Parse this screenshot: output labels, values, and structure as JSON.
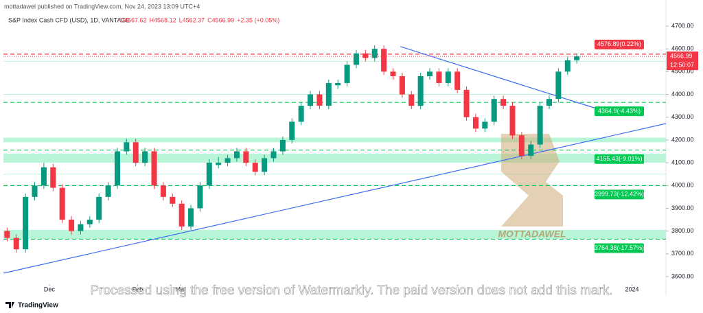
{
  "header": {
    "publisher": "mottadawel published on TradingView.com, Nov 24, 2023 13:09 UTC+4",
    "symbol": "S&P Index Cash CFD (USD), 1D, VANTAGE",
    "ohlc": [
      "O4567.62",
      "H4568.12",
      "L4562.37",
      "C4566.99",
      "+2.35 (+0.05%)"
    ]
  },
  "chart_data": {
    "type": "candlestick",
    "up_color": "#089981",
    "down_color": "#f23645",
    "candles": [
      [
        3800,
        3815,
        3755,
        3770
      ],
      [
        3770,
        3785,
        3705,
        3720
      ],
      [
        3720,
        3965,
        3705,
        3950
      ],
      [
        3950,
        4015,
        3935,
        4000
      ],
      [
        4000,
        4100,
        3985,
        4080
      ],
      [
        4080,
        4095,
        3975,
        3990
      ],
      [
        3990,
        4005,
        3835,
        3850
      ],
      [
        3850,
        3865,
        3785,
        3800
      ],
      [
        3800,
        3845,
        3785,
        3830
      ],
      [
        3830,
        3865,
        3815,
        3850
      ],
      [
        3850,
        3965,
        3835,
        3950
      ],
      [
        3950,
        4015,
        3935,
        4000
      ],
      [
        4000,
        4165,
        3985,
        4150
      ],
      [
        4150,
        4205,
        4135,
        4190
      ],
      [
        4190,
        4205,
        4085,
        4100
      ],
      [
        4100,
        4165,
        4085,
        4150
      ],
      [
        4150,
        4165,
        3985,
        4000
      ],
      [
        4000,
        4015,
        3935,
        3950
      ],
      [
        3950,
        3965,
        3905,
        3920
      ],
      [
        3920,
        3935,
        3805,
        3820
      ],
      [
        3820,
        3915,
        3805,
        3900
      ],
      [
        3900,
        4015,
        3885,
        4000
      ],
      [
        4000,
        4115,
        3985,
        4100
      ],
      [
        4090,
        4125,
        4075,
        4100
      ],
      [
        4100,
        4135,
        4085,
        4120
      ],
      [
        4120,
        4165,
        4105,
        4150
      ],
      [
        4150,
        4165,
        4085,
        4100
      ],
      [
        4100,
        4115,
        4045,
        4060
      ],
      [
        4060,
        4135,
        4045,
        4120
      ],
      [
        4120,
        4165,
        4105,
        4150
      ],
      [
        4150,
        4215,
        4135,
        4200
      ],
      [
        4200,
        4295,
        4185,
        4280
      ],
      [
        4280,
        4365,
        4265,
        4350
      ],
      [
        4350,
        4415,
        4335,
        4400
      ],
      [
        4400,
        4415,
        4335,
        4350
      ],
      [
        4350,
        4465,
        4335,
        4450
      ],
      [
        4440,
        4465,
        4425,
        4450
      ],
      [
        4450,
        4545,
        4435,
        4530
      ],
      [
        4530,
        4595,
        4515,
        4580
      ],
      [
        4580,
        4595,
        4545,
        4560
      ],
      [
        4560,
        4615,
        4545,
        4600
      ],
      [
        4600,
        4615,
        4485,
        4500
      ],
      [
        4500,
        4515,
        4465,
        4480
      ],
      [
        4480,
        4495,
        4385,
        4400
      ],
      [
        4400,
        4415,
        4335,
        4350
      ],
      [
        4350,
        4495,
        4335,
        4480
      ],
      [
        4480,
        4515,
        4465,
        4500
      ],
      [
        4500,
        4515,
        4435,
        4450
      ],
      [
        4450,
        4515,
        4435,
        4500
      ],
      [
        4500,
        4515,
        4405,
        4420
      ],
      [
        4420,
        4435,
        4285,
        4300
      ],
      [
        4300,
        4315,
        4235,
        4250
      ],
      [
        4250,
        4295,
        4235,
        4280
      ],
      [
        4280,
        4395,
        4265,
        4380
      ],
      [
        4380,
        4395,
        4335,
        4350
      ],
      [
        4350,
        4365,
        4205,
        4220
      ],
      [
        4220,
        4235,
        4115,
        4130
      ],
      [
        4130,
        4195,
        4115,
        4180
      ],
      [
        4180,
        4365,
        4165,
        4350
      ],
      [
        4350,
        4395,
        4335,
        4380
      ],
      [
        4380,
        4515,
        4365,
        4500
      ],
      [
        4500,
        4565,
        4485,
        4550
      ],
      [
        4550,
        4580,
        4535,
        4567
      ]
    ],
    "xlim": [
      -0.4,
      71.7
    ],
    "xticks": [
      {
        "value": 4.6,
        "label": "Dec"
      },
      {
        "value": 14.2,
        "label": "Feb"
      },
      {
        "value": 18.9,
        "label": "Mar"
      },
      {
        "value": 68.0,
        "label": "2024"
      }
    ],
    "ylim": [
      3570,
      4735
    ],
    "yticks": [
      {
        "value": 3600,
        "label": "3600.00"
      },
      {
        "value": 3700,
        "label": "3700.00"
      },
      {
        "value": 3800,
        "label": "3800.00"
      },
      {
        "value": 3900,
        "label": "3900.00"
      },
      {
        "value": 4000,
        "label": "4000.00"
      },
      {
        "value": 4100,
        "label": "4100.00"
      },
      {
        "value": 4200,
        "label": "4200.00"
      },
      {
        "value": 4300,
        "label": "4300.00"
      },
      {
        "value": 4400,
        "label": "4400.00"
      },
      {
        "value": 4500,
        "label": "4500.00"
      },
      {
        "value": 4600,
        "label": "4600.00"
      },
      {
        "value": 4700,
        "label": "4700.00"
      }
    ],
    "zones": [
      [
        4190,
        4210
      ],
      [
        4100,
        4140
      ],
      [
        3765,
        3805
      ]
    ],
    "zone_color": "#b9f6d8",
    "guide_lines": [
      4545,
      4400,
      4050
    ],
    "levels": [
      {
        "value": 4576.89,
        "label": "4576.89(0.22%)",
        "color": "#f23645"
      },
      {
        "value": 4364.9,
        "label": "4364.9(-4.43%)",
        "color": "#00c853"
      },
      {
        "value": 4155.43,
        "label": "4155.43(-9.01%)",
        "color": "#00c853"
      },
      {
        "value": 3999.73,
        "label": "3999.73(-12.42%)",
        "color": "#00c853"
      },
      {
        "value": 3764.38,
        "label": "3764.38(-17.57%)",
        "color": "#00c853"
      }
    ],
    "trendlines": [
      {
        "x": [
          42.8,
          63.9
        ],
        "y": [
          4610,
          4341
        ],
        "color": "#3d6ef2"
      },
      {
        "x": [
          -0.4,
          71.7
        ],
        "y": [
          3615,
          4272
        ],
        "color": "#3d6ef2"
      }
    ],
    "last_price": {
      "value": 4566.99,
      "label": "4566.99",
      "countdown": "12:50:07"
    }
  },
  "watermarks": {
    "logo": "MOTTADAWEL",
    "notice": "Processed using the free version of Watermarkly. The paid version does not add this mark."
  },
  "footer": {
    "brand": "TradingView"
  }
}
